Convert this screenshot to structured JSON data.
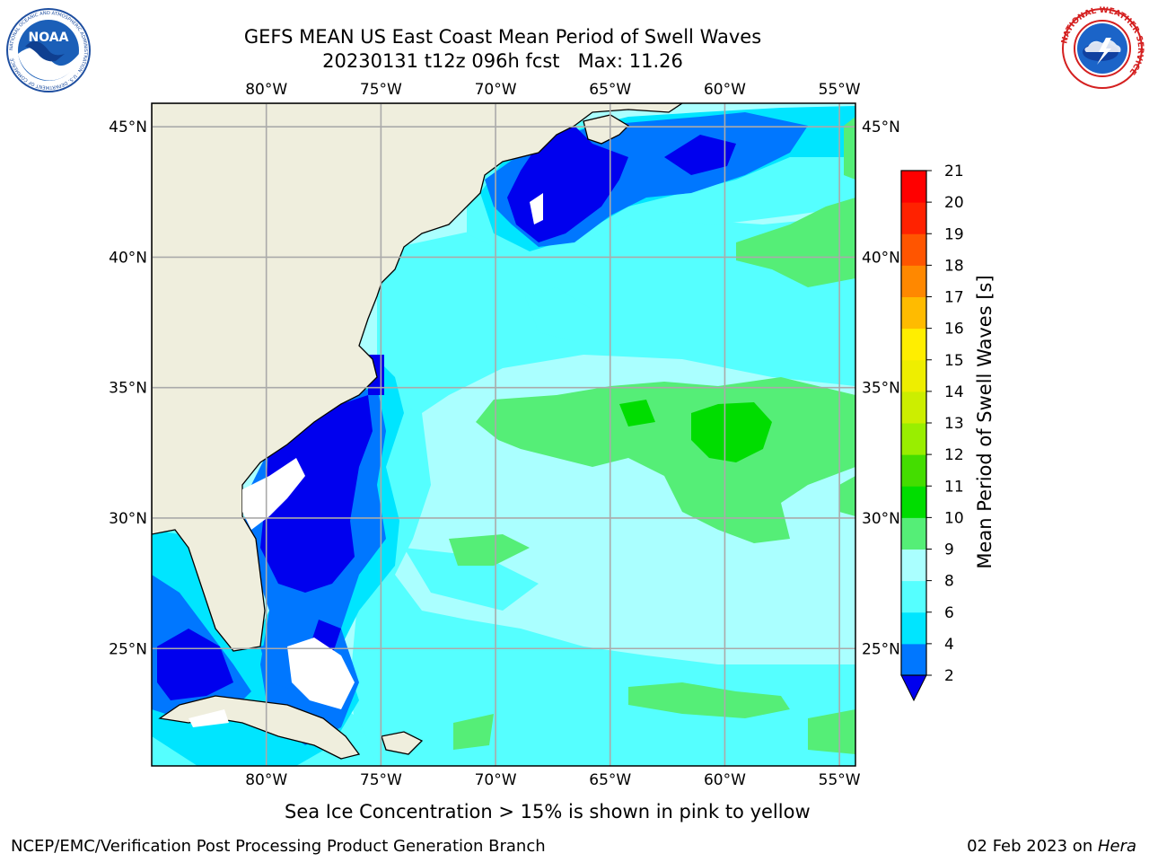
{
  "title": {
    "line1": "GEFS MEAN US East Coast Mean Period of Swell Waves",
    "line2": "20230131 t12z 096h fcst   Max: 11.26"
  },
  "logos": {
    "left": {
      "name": "noaa-logo",
      "text": "NOAA",
      "ring_text": "NATIONAL OCEANIC AND ATMOSPHERIC ADMINISTRATION · U.S. DEPARTMENT OF COMMERCE"
    },
    "right": {
      "name": "nws-logo",
      "ring_text": "NATIONAL WEATHER SERVICE"
    }
  },
  "map": {
    "lon_range": [
      -85,
      -54.3
    ],
    "lat_range": [
      20.5,
      45.9
    ],
    "lon_ticks": [
      {
        "value": -80,
        "label": "80°W"
      },
      {
        "value": -75,
        "label": "75°W"
      },
      {
        "value": -70,
        "label": "70°W"
      },
      {
        "value": -65,
        "label": "65°W"
      },
      {
        "value": -60,
        "label": "60°W"
      },
      {
        "value": -55,
        "label": "55°W"
      }
    ],
    "lat_ticks": [
      {
        "value": 25,
        "label": "25°N"
      },
      {
        "value": 30,
        "label": "30°N"
      },
      {
        "value": 35,
        "label": "35°N"
      },
      {
        "value": 40,
        "label": "40°N"
      },
      {
        "value": 45,
        "label": "45°N"
      }
    ],
    "colors": {
      "land": "#efeedd",
      "ocean_base": "#aaffff",
      "grid": "#aaaaaa"
    }
  },
  "colorbar": {
    "label": "Mean Period of Swell Waves [s]",
    "extend": "min",
    "levels": [
      {
        "value": "2",
        "color": "#0000ff"
      },
      {
        "value": "4",
        "color": "#0077ff"
      },
      {
        "value": "6",
        "color": "#00e5ff"
      },
      {
        "value": "8",
        "color": "#55ffff"
      },
      {
        "value": "9",
        "color": "#aaffff"
      },
      {
        "value": "10",
        "color": "#55ee77"
      },
      {
        "value": "11",
        "color": "#00dd00"
      },
      {
        "value": "12",
        "color": "#44dd00"
      },
      {
        "value": "13",
        "color": "#99ee00"
      },
      {
        "value": "14",
        "color": "#ccee00"
      },
      {
        "value": "15",
        "color": "#eeee00"
      },
      {
        "value": "16",
        "color": "#ffee00"
      },
      {
        "value": "17",
        "color": "#ffbb00"
      },
      {
        "value": "18",
        "color": "#ff8800"
      },
      {
        "value": "19",
        "color": "#ff5500"
      },
      {
        "value": "20",
        "color": "#ff2200"
      },
      {
        "value": "21",
        "color": "#ff0000"
      }
    ],
    "below_min_color": "#0000ee"
  },
  "caption": "Sea Ice Concentration > 15% is shown in pink to yellow",
  "footer": {
    "left": "NCEP/EMC/Verification Post Processing Product Generation Branch",
    "date": "02 Feb 2023 on ",
    "host": "Hera"
  }
}
